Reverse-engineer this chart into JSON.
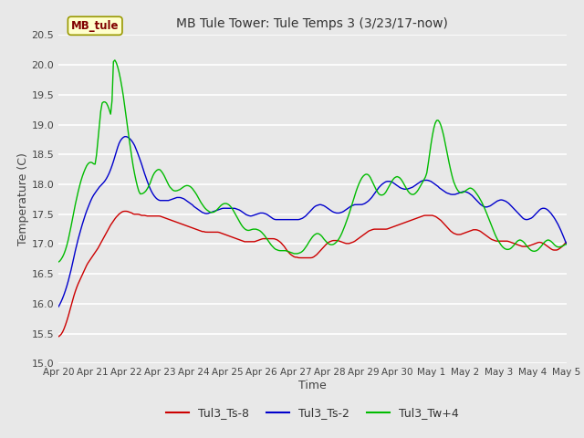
{
  "title": "MB Tule Tower: Tule Temps 3 (3/23/17-now)",
  "xlabel": "Time",
  "ylabel": "Temperature (C)",
  "ylim": [
    15.0,
    20.5
  ],
  "yticks": [
    15.0,
    15.5,
    16.0,
    16.5,
    17.0,
    17.5,
    18.0,
    18.5,
    19.0,
    19.5,
    20.0,
    20.5
  ],
  "bg_color": "#e8e8e8",
  "plot_bg": "#e8e8e8",
  "grid_color": "#ffffff",
  "legend_label_color": "#800000",
  "legend_box_color": "#ffffcc",
  "legend_box_border": "#999900",
  "series_colors": [
    "#cc0000",
    "#0000cc",
    "#00bb00"
  ],
  "series_names": [
    "Tul3_Ts-8",
    "Tul3_Ts-2",
    "Tul3_Tw+4"
  ],
  "xtick_labels": [
    "Apr 20",
    "Apr 21",
    "Apr 22",
    "Apr 23",
    "Apr 24",
    "Apr 25",
    "Apr 26",
    "Apr 27",
    "Apr 28",
    "Apr 29",
    "Apr 30",
    "May 1",
    "May 2",
    "May 3",
    "May 4",
    "May 5"
  ],
  "red_data": [
    15.45,
    15.47,
    15.5,
    15.55,
    15.62,
    15.7,
    15.79,
    15.89,
    15.99,
    16.09,
    16.18,
    16.26,
    16.33,
    16.39,
    16.45,
    16.51,
    16.57,
    16.63,
    16.68,
    16.72,
    16.76,
    16.8,
    16.84,
    16.88,
    16.92,
    16.97,
    17.02,
    17.07,
    17.12,
    17.17,
    17.22,
    17.27,
    17.32,
    17.36,
    17.4,
    17.44,
    17.47,
    17.5,
    17.52,
    17.54,
    17.55,
    17.55,
    17.55,
    17.54,
    17.53,
    17.52,
    17.5,
    17.5,
    17.5,
    17.5,
    17.49,
    17.48,
    17.48,
    17.48,
    17.47,
    17.47,
    17.47,
    17.47,
    17.47,
    17.47,
    17.47,
    17.47,
    17.47,
    17.46,
    17.45,
    17.44,
    17.43,
    17.42,
    17.41,
    17.4,
    17.39,
    17.38,
    17.37,
    17.36,
    17.35,
    17.34,
    17.33,
    17.32,
    17.31,
    17.3,
    17.29,
    17.28,
    17.27,
    17.26,
    17.25,
    17.24,
    17.23,
    17.22,
    17.21,
    17.21,
    17.2,
    17.2,
    17.2,
    17.2,
    17.2,
    17.2,
    17.2,
    17.2,
    17.2,
    17.19,
    17.18,
    17.17,
    17.16,
    17.15,
    17.14,
    17.13,
    17.12,
    17.11,
    17.1,
    17.09,
    17.08,
    17.07,
    17.06,
    17.05,
    17.04,
    17.04,
    17.04,
    17.04,
    17.04,
    17.04,
    17.04,
    17.05,
    17.06,
    17.07,
    17.08,
    17.09,
    17.09,
    17.09,
    17.09,
    17.09,
    17.09,
    17.09,
    17.09,
    17.08,
    17.07,
    17.05,
    17.03,
    17.0,
    16.97,
    16.93,
    16.89,
    16.86,
    16.83,
    16.81,
    16.79,
    16.78,
    16.78,
    16.77,
    16.77,
    16.77,
    16.77,
    16.77,
    16.77,
    16.77,
    16.77,
    16.77,
    16.78,
    16.8,
    16.82,
    16.85,
    16.88,
    16.91,
    16.94,
    16.97,
    17.0,
    17.02,
    17.04,
    17.05,
    17.06,
    17.06,
    17.06,
    17.06,
    17.05,
    17.04,
    17.03,
    17.02,
    17.01,
    17.01,
    17.01,
    17.02,
    17.03,
    17.04,
    17.06,
    17.08,
    17.1,
    17.12,
    17.14,
    17.16,
    17.18,
    17.2,
    17.22,
    17.23,
    17.24,
    17.25,
    17.25,
    17.25,
    17.25,
    17.25,
    17.25,
    17.25,
    17.25,
    17.25,
    17.26,
    17.27,
    17.28,
    17.29,
    17.3,
    17.31,
    17.32,
    17.33,
    17.34,
    17.35,
    17.36,
    17.37,
    17.38,
    17.39,
    17.4,
    17.41,
    17.42,
    17.43,
    17.44,
    17.45,
    17.46,
    17.47,
    17.48,
    17.48,
    17.48,
    17.48,
    17.48,
    17.48,
    17.47,
    17.46,
    17.44,
    17.42,
    17.4,
    17.37,
    17.34,
    17.31,
    17.28,
    17.25,
    17.22,
    17.2,
    17.18,
    17.17,
    17.16,
    17.16,
    17.16,
    17.17,
    17.18,
    17.19,
    17.2,
    17.21,
    17.22,
    17.23,
    17.24,
    17.24,
    17.24,
    17.23,
    17.22,
    17.2,
    17.18,
    17.16,
    17.14,
    17.12,
    17.1,
    17.08,
    17.07,
    17.06,
    17.05,
    17.05,
    17.05,
    17.05,
    17.05,
    17.05,
    17.05,
    17.05,
    17.04,
    17.03,
    17.02,
    17.01,
    17.0,
    16.99,
    16.98,
    16.97,
    16.96,
    16.96,
    16.96,
    16.96,
    16.97,
    16.98,
    16.99,
    17.0,
    17.01,
    17.02,
    17.03,
    17.03,
    17.02,
    17.01,
    16.99,
    16.97,
    16.95,
    16.93,
    16.91,
    16.9,
    16.9,
    16.9,
    16.91,
    16.93,
    16.95,
    16.98,
    17.01,
    17.03
  ],
  "blue_data": [
    15.95,
    16.0,
    16.06,
    16.13,
    16.21,
    16.3,
    16.4,
    16.51,
    16.63,
    16.76,
    16.89,
    17.01,
    17.12,
    17.22,
    17.32,
    17.41,
    17.5,
    17.58,
    17.65,
    17.72,
    17.78,
    17.83,
    17.87,
    17.91,
    17.95,
    17.98,
    18.01,
    18.04,
    18.08,
    18.13,
    18.19,
    18.26,
    18.34,
    18.43,
    18.53,
    18.62,
    18.7,
    18.75,
    18.78,
    18.8,
    18.8,
    18.79,
    18.77,
    18.74,
    18.7,
    18.65,
    18.58,
    18.51,
    18.43,
    18.35,
    18.26,
    18.17,
    18.09,
    18.01,
    17.94,
    17.88,
    17.83,
    17.79,
    17.76,
    17.74,
    17.73,
    17.73,
    17.73,
    17.73,
    17.73,
    17.73,
    17.74,
    17.75,
    17.76,
    17.77,
    17.78,
    17.78,
    17.78,
    17.77,
    17.76,
    17.74,
    17.72,
    17.7,
    17.68,
    17.66,
    17.63,
    17.61,
    17.59,
    17.57,
    17.55,
    17.53,
    17.52,
    17.51,
    17.51,
    17.52,
    17.53,
    17.54,
    17.55,
    17.56,
    17.57,
    17.58,
    17.59,
    17.6,
    17.6,
    17.6,
    17.6,
    17.6,
    17.6,
    17.6,
    17.6,
    17.59,
    17.58,
    17.57,
    17.55,
    17.53,
    17.51,
    17.49,
    17.48,
    17.47,
    17.47,
    17.48,
    17.49,
    17.5,
    17.51,
    17.52,
    17.52,
    17.52,
    17.51,
    17.5,
    17.48,
    17.46,
    17.44,
    17.42,
    17.41,
    17.41,
    17.41,
    17.41,
    17.41,
    17.41,
    17.41,
    17.41,
    17.41,
    17.41,
    17.41,
    17.41,
    17.41,
    17.41,
    17.41,
    17.42,
    17.43,
    17.45,
    17.47,
    17.5,
    17.53,
    17.56,
    17.59,
    17.62,
    17.64,
    17.65,
    17.66,
    17.66,
    17.65,
    17.64,
    17.62,
    17.6,
    17.58,
    17.56,
    17.54,
    17.53,
    17.52,
    17.52,
    17.52,
    17.53,
    17.54,
    17.56,
    17.58,
    17.6,
    17.62,
    17.64,
    17.65,
    17.66,
    17.66,
    17.66,
    17.66,
    17.66,
    17.67,
    17.68,
    17.7,
    17.72,
    17.75,
    17.78,
    17.82,
    17.86,
    17.9,
    17.94,
    17.97,
    18.0,
    18.02,
    18.04,
    18.05,
    18.05,
    18.05,
    18.04,
    18.02,
    18.0,
    17.98,
    17.96,
    17.94,
    17.93,
    17.92,
    17.92,
    17.92,
    17.93,
    17.94,
    17.95,
    17.97,
    17.99,
    18.01,
    18.03,
    18.05,
    18.06,
    18.07,
    18.07,
    18.07,
    18.06,
    18.05,
    18.03,
    18.01,
    17.99,
    17.97,
    17.94,
    17.92,
    17.9,
    17.88,
    17.86,
    17.85,
    17.84,
    17.83,
    17.83,
    17.83,
    17.84,
    17.85,
    17.86,
    17.87,
    17.88,
    17.88,
    17.87,
    17.86,
    17.84,
    17.82,
    17.79,
    17.76,
    17.73,
    17.7,
    17.67,
    17.65,
    17.63,
    17.62,
    17.62,
    17.63,
    17.64,
    17.66,
    17.68,
    17.7,
    17.72,
    17.73,
    17.74,
    17.74,
    17.73,
    17.72,
    17.7,
    17.68,
    17.65,
    17.62,
    17.59,
    17.56,
    17.53,
    17.5,
    17.47,
    17.44,
    17.42,
    17.41,
    17.41,
    17.42,
    17.43,
    17.45,
    17.48,
    17.51,
    17.54,
    17.57,
    17.59,
    17.6,
    17.6,
    17.59,
    17.57,
    17.54,
    17.51,
    17.47,
    17.43,
    17.38,
    17.33,
    17.27,
    17.21,
    17.14,
    17.07,
    17.0
  ],
  "green_data": [
    16.7,
    16.72,
    16.76,
    16.81,
    16.88,
    16.97,
    17.08,
    17.21,
    17.35,
    17.5,
    17.64,
    17.77,
    17.89,
    18.0,
    18.1,
    18.18,
    18.25,
    18.31,
    18.35,
    18.37,
    18.37,
    18.35,
    18.32,
    18.5,
    18.8,
    19.1,
    19.35,
    19.38,
    19.38,
    19.36,
    19.3,
    19.22,
    19.12,
    20.05,
    20.08,
    20.03,
    19.94,
    19.82,
    19.67,
    19.5,
    19.3,
    19.09,
    18.88,
    18.68,
    18.49,
    18.31,
    18.16,
    18.03,
    17.92,
    17.84,
    17.84,
    17.85,
    17.87,
    17.9,
    17.95,
    18.0,
    18.08,
    18.15,
    18.2,
    18.23,
    18.25,
    18.25,
    18.22,
    18.18,
    18.13,
    18.07,
    18.01,
    17.96,
    17.93,
    17.9,
    17.89,
    17.89,
    17.9,
    17.91,
    17.93,
    17.95,
    17.97,
    17.98,
    17.98,
    17.97,
    17.95,
    17.92,
    17.88,
    17.84,
    17.79,
    17.74,
    17.69,
    17.65,
    17.61,
    17.58,
    17.56,
    17.54,
    17.53,
    17.53,
    17.54,
    17.56,
    17.59,
    17.62,
    17.65,
    17.67,
    17.68,
    17.68,
    17.67,
    17.65,
    17.62,
    17.58,
    17.53,
    17.48,
    17.43,
    17.38,
    17.33,
    17.29,
    17.26,
    17.24,
    17.23,
    17.23,
    17.24,
    17.25,
    17.25,
    17.25,
    17.24,
    17.23,
    17.21,
    17.18,
    17.15,
    17.11,
    17.07,
    17.03,
    16.99,
    16.96,
    16.93,
    16.91,
    16.9,
    16.89,
    16.89,
    16.89,
    16.89,
    16.89,
    16.88,
    16.87,
    16.86,
    16.85,
    16.84,
    16.84,
    16.84,
    16.85,
    16.86,
    16.88,
    16.91,
    16.95,
    16.99,
    17.04,
    17.08,
    17.12,
    17.15,
    17.17,
    17.18,
    17.17,
    17.15,
    17.12,
    17.08,
    17.05,
    17.02,
    17.0,
    16.99,
    16.99,
    17.0,
    17.02,
    17.05,
    17.09,
    17.14,
    17.2,
    17.27,
    17.34,
    17.42,
    17.5,
    17.59,
    17.68,
    17.77,
    17.86,
    17.94,
    18.01,
    18.07,
    18.12,
    18.15,
    18.17,
    18.17,
    18.15,
    18.11,
    18.05,
    17.99,
    17.93,
    17.88,
    17.84,
    17.82,
    17.82,
    17.83,
    17.86,
    17.91,
    17.96,
    18.01,
    18.06,
    18.1,
    18.12,
    18.13,
    18.12,
    18.1,
    18.06,
    18.01,
    17.96,
    17.91,
    17.87,
    17.84,
    17.83,
    17.83,
    17.85,
    17.88,
    17.92,
    17.97,
    18.02,
    18.07,
    18.12,
    18.2,
    18.4,
    18.6,
    18.78,
    18.93,
    19.03,
    19.08,
    19.07,
    19.02,
    18.93,
    18.82,
    18.68,
    18.54,
    18.4,
    18.27,
    18.15,
    18.05,
    17.98,
    17.92,
    17.88,
    17.86,
    17.86,
    17.87,
    17.89,
    17.91,
    17.93,
    17.94,
    17.93,
    17.91,
    17.88,
    17.84,
    17.8,
    17.75,
    17.7,
    17.64,
    17.58,
    17.51,
    17.44,
    17.37,
    17.3,
    17.23,
    17.16,
    17.1,
    17.05,
    17.01,
    16.97,
    16.94,
    16.92,
    16.91,
    16.91,
    16.92,
    16.94,
    16.97,
    17.0,
    17.04,
    17.06,
    17.07,
    17.06,
    17.04,
    17.01,
    16.97,
    16.94,
    16.91,
    16.89,
    16.88,
    16.88,
    16.89,
    16.91,
    16.94,
    16.97,
    17.01,
    17.04,
    17.06,
    17.07,
    17.06,
    17.04,
    17.01,
    16.98,
    16.96,
    16.95,
    16.95,
    16.96,
    16.97,
    16.99,
    17.0
  ]
}
